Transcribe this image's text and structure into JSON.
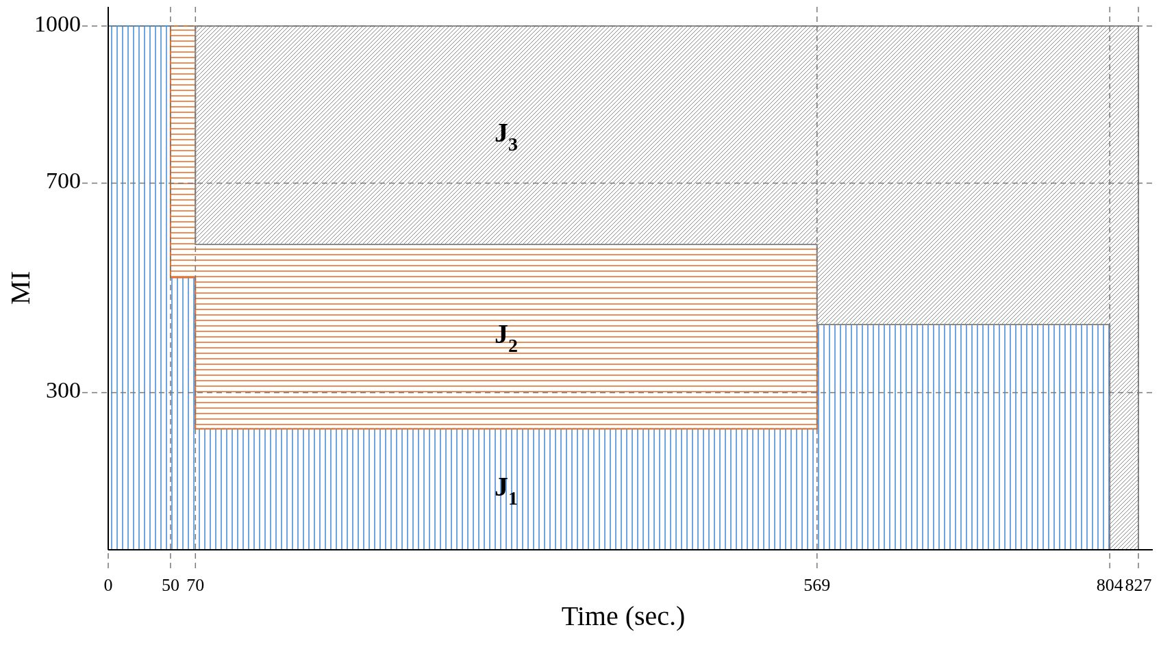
{
  "chart_data": {
    "type": "area",
    "stacked": true,
    "xlabel": "Time (sec.)",
    "ylabel": "MI",
    "x": [
      0,
      50,
      50,
      70,
      70,
      569,
      569,
      804,
      804,
      827
    ],
    "series": [
      {
        "name": "J$_{1}$",
        "color": "#4a90d9",
        "values": [
          1000,
          1000,
          520,
          520,
          231,
          231,
          430,
          430,
          null,
          null
        ]
      },
      {
        "name": "J$_{2}$",
        "color": "#e8702a",
        "values": [
          null,
          null,
          480,
          480,
          352,
          352,
          null,
          null,
          null,
          null
        ]
      },
      {
        "name": "J$_{3}$",
        "color": "#8a8a8a",
        "values": [
          null,
          null,
          null,
          null,
          417,
          417,
          570,
          570,
          1000,
          1000
        ]
      }
    ],
    "xlim": [
      0,
      827
    ],
    "xticks": [
      0,
      50,
      70,
      569,
      804,
      827
    ],
    "ylim": [
      0,
      1000
    ],
    "yticks": [
      300,
      700,
      1000
    ],
    "grid": true,
    "legend": false
  }
}
